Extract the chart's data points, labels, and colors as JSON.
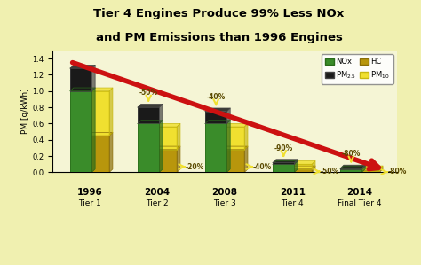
{
  "title_line1": "Tier 4 Engines Produce 99% Less NOx",
  "title_line2": "and PM Emissions than 1996 Engines",
  "bg_outer": "#f0f0b0",
  "bg_plot": "#f5f5d5",
  "x_labels_bold": [
    "1996",
    "2004",
    "2008",
    "2011",
    "2014"
  ],
  "x_labels_normal": [
    "Tier 1",
    "Tier 2",
    "Tier 3",
    "Tier 4",
    "Final Tier 4"
  ],
  "nox_values": [
    1.0,
    0.6,
    0.6,
    0.1,
    0.04
  ],
  "pm25_values": [
    0.28,
    0.2,
    0.15,
    0.02,
    0.01
  ],
  "hc_values": [
    0.45,
    0.28,
    0.28,
    0.04,
    0.02
  ],
  "pm10_values": [
    0.55,
    0.28,
    0.28,
    0.06,
    0.02
  ],
  "color_nox": "#3a8c2a",
  "color_nox_dark": "#2a6a1a",
  "color_pm25": "#1a1a1a",
  "color_hc": "#b8960c",
  "color_hc_dark": "#8a6e08",
  "color_pm10": "#f0e030",
  "color_pm10_dark": "#c8b810",
  "color_red": "#cc1111",
  "color_yellow_arrow": "#e8d020",
  "percent_nox_labels": [
    "-50%",
    "-40%",
    "-90%",
    "-80%"
  ],
  "percent_hc_labels": [
    "-20%",
    "-40%",
    "-50%",
    "-80%"
  ],
  "ylabel": "PM [g/kWh]",
  "ylim_max": 1.5
}
